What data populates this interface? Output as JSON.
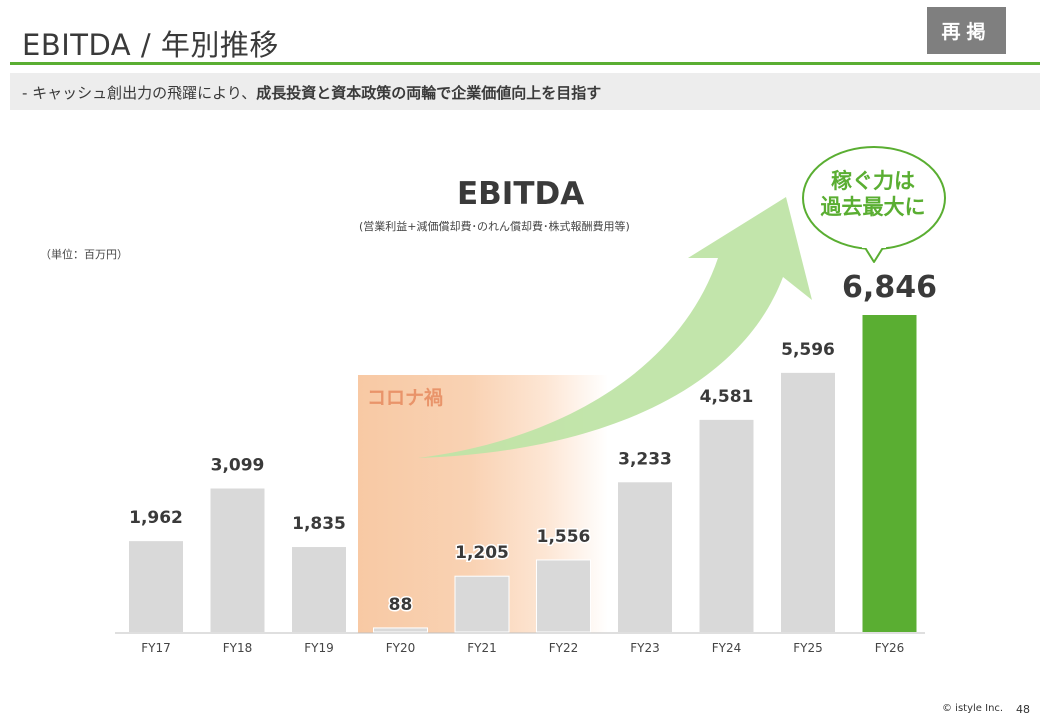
{
  "header": {
    "title": "EBITDA / 年別推移",
    "badge": "再掲"
  },
  "subtitle": {
    "prefix": "-  キャッシュ創出力の飛躍により、",
    "emphasis": "成長投資と資本政策の両輪で企業価値向上を目指す"
  },
  "unit_label": "（単位：百万円）",
  "annotations": {
    "covid": "コロナ禍",
    "bubble_line1": "稼ぐ力は",
    "bubble_line2": "過去最大に"
  },
  "footer": {
    "copyright": "© istyle Inc.",
    "page": "48"
  },
  "colors": {
    "bar": "#d9d9d9",
    "highlight": "#5aae32",
    "covid_band": "#f8c9a4",
    "arrow": "#bfe4a6"
  },
  "chart_data": {
    "type": "bar",
    "title": "EBITDA",
    "subtitle": "(営業利益+減価償却費･のれん償却費･株式報酬費用等)",
    "categories": [
      "FY17",
      "FY18",
      "FY19",
      "FY20",
      "FY21",
      "FY22",
      "FY23",
      "FY24",
      "FY25",
      "FY26"
    ],
    "values": [
      1962,
      3099,
      1835,
      88,
      1205,
      1556,
      3233,
      4581,
      5596,
      6846
    ],
    "labels": [
      "1,962",
      "3,099",
      "1,835",
      "88",
      "1,205",
      "1,556",
      "3,233",
      "4,581",
      "5,596",
      "6,846"
    ],
    "highlight_index": 9,
    "covid_range": [
      "FY20",
      "FY22"
    ],
    "ylim": [
      0,
      6846
    ],
    "xlabel": "",
    "ylabel": "",
    "grid": false
  }
}
